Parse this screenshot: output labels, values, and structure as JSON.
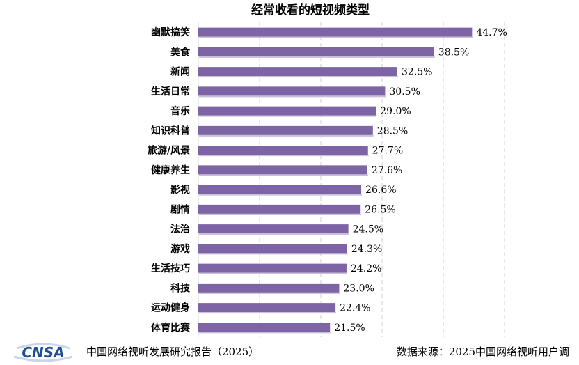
{
  "chart_data": {
    "type": "bar",
    "orientation": "horizontal",
    "title": "经常收看的短视频类型",
    "categories": [
      "幽默搞笑",
      "美食",
      "新闻",
      "生活日常",
      "音乐",
      "知识科普",
      "旅游/风景",
      "健康养生",
      "影视",
      "剧情",
      "法治",
      "游戏",
      "生活技巧",
      "科技",
      "运动健身",
      "体育比赛"
    ],
    "values": [
      44.7,
      38.5,
      32.5,
      30.5,
      29.0,
      28.5,
      27.7,
      27.6,
      26.6,
      26.5,
      24.5,
      24.3,
      24.2,
      23.0,
      22.4,
      21.5
    ],
    "value_labels": [
      "44.7%",
      "38.5%",
      "32.5%",
      "30.5%",
      "29.0%",
      "28.5%",
      "27.7%",
      "27.6%",
      "26.6%",
      "26.5%",
      "24.5%",
      "24.3%",
      "24.2%",
      "23.0%",
      "22.4%",
      "21.5%"
    ],
    "xlim": [
      0,
      50
    ],
    "grid": "vertical dashed",
    "bar_color": "#7d64a4"
  },
  "footer": {
    "logo_text": "CNSA",
    "report": "中国网络视听发展研究报告（2025）",
    "source": "数据来源：2025中国网络视听用户调"
  }
}
